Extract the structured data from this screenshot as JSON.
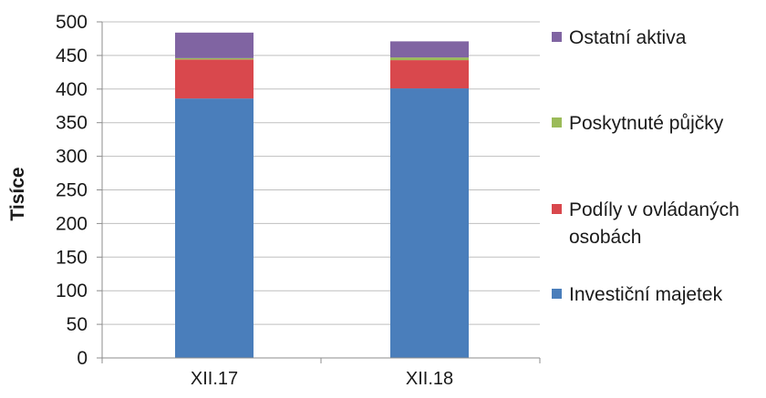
{
  "chart_data": {
    "type": "bar",
    "stacked": true,
    "categories": [
      "XII.17",
      "XII.18"
    ],
    "ylabel": "Tisíce",
    "xlabel": "",
    "ylim": [
      0,
      500
    ],
    "yticks": [
      0,
      50,
      100,
      150,
      200,
      250,
      300,
      350,
      400,
      450,
      500
    ],
    "grid": true,
    "legend_position": "right",
    "series": [
      {
        "name": "Investiční majetek",
        "color": "#4a7ebb",
        "values": [
          386,
          401
        ]
      },
      {
        "name": "Podíly v ovládaných osobách",
        "name_lines": [
          "Podíly v ovládaných",
          "osobách"
        ],
        "color": "#d9484d",
        "values": [
          58,
          42
        ]
      },
      {
        "name": "Poskytnuté půjčky",
        "color": "#9bbb59",
        "values": [
          2,
          4
        ]
      },
      {
        "name": "Ostatní aktiva",
        "color": "#8064a2",
        "values": [
          38,
          24
        ]
      }
    ]
  }
}
